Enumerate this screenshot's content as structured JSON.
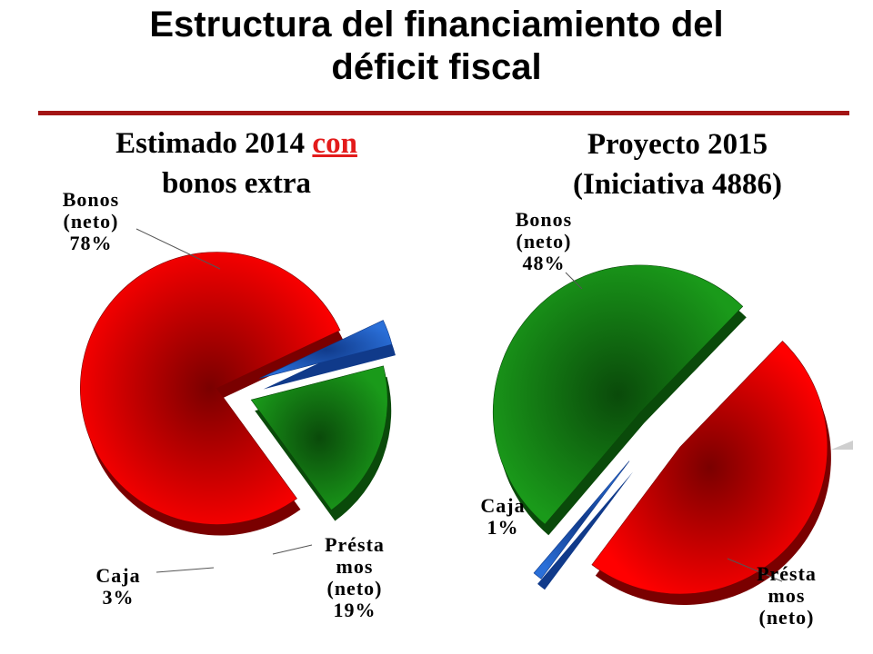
{
  "slide": {
    "title_line1": "Estructura del financiamiento del",
    "title_line2": "déficit fiscal"
  },
  "charts": {
    "left": {
      "subtitle_pre": "Estimado 2014 ",
      "subtitle_hl": "con",
      "subtitle_post": "bonos extra"
    },
    "right": {
      "subtitle_line1": "Proyecto 2015",
      "subtitle_line2": "(Iniciativa 4886)"
    }
  },
  "colors": {
    "bonos": "#ff0000",
    "bonos_dark": "#7a0000",
    "prestamos": "#1a9a1a",
    "prestamos_dark": "#0a4a0a",
    "caja": "#2a6fd8",
    "caja_dark": "#103a8a",
    "rule": "#a31515",
    "highlight": "#e31b1b"
  },
  "chart_data": [
    {
      "type": "pie",
      "title": "Estimado 2014 con bonos extra",
      "categories": [
        "Bonos (neto)",
        "Caja",
        "Présta mos (neto)"
      ],
      "values": [
        78,
        3,
        19
      ],
      "value_labels": [
        "78%",
        "3%",
        "19%"
      ],
      "label_lines": [
        [
          "Bonos",
          "(neto)",
          "78%"
        ],
        [
          "Caja",
          "3%"
        ],
        [
          "Présta",
          "mos",
          "(neto)",
          "19%"
        ]
      ],
      "exploded": true
    },
    {
      "type": "pie",
      "title": "Proyecto 2015 (Iniciativa 4886)",
      "categories": [
        "Bonos (neto)",
        "Caja",
        "Présta mos (neto)"
      ],
      "values": [
        48,
        1,
        51
      ],
      "value_labels": [
        "48%",
        "1%",
        ""
      ],
      "label_lines": [
        [
          "Bonos",
          "(neto)",
          "48%"
        ],
        [
          "Caja",
          "1%"
        ],
        [
          "Présta",
          "mos",
          "(neto)"
        ]
      ],
      "exploded": true
    }
  ]
}
